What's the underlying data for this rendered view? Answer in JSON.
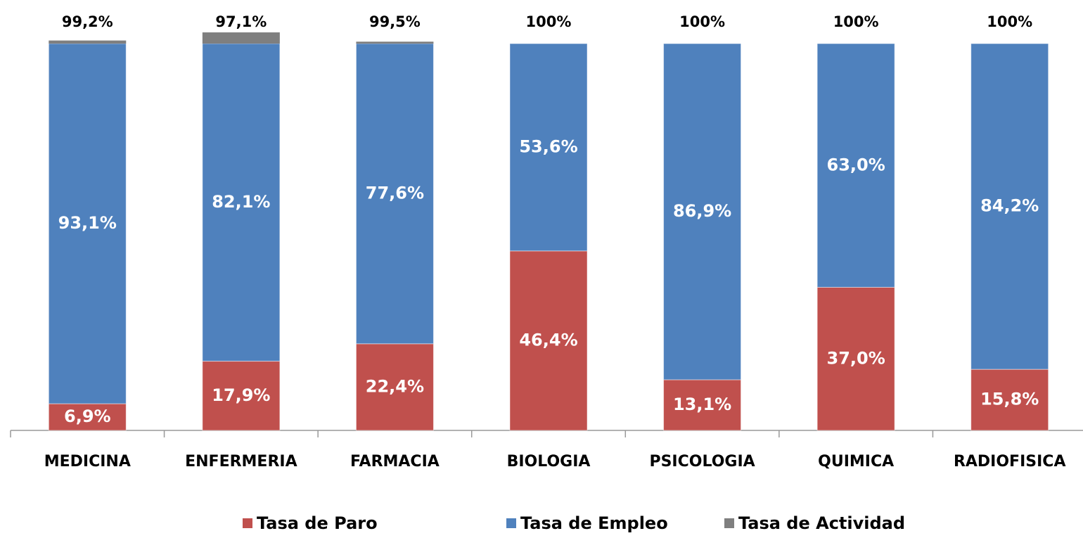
{
  "chart_data": {
    "type": "bar",
    "categories": [
      "MEDICINA",
      "ENFERMERIA",
      "FARMACIA",
      "BIOLOGIA",
      "PSICOLOGIA",
      "QUIMICA",
      "RADIOFISICA"
    ],
    "series": [
      {
        "name": "Tasa de Paro",
        "color": "#c0504d",
        "values": [
          6.9,
          17.9,
          22.4,
          46.4,
          13.1,
          37.0,
          15.8
        ],
        "value_labels": [
          "6,9%",
          "17,9%",
          "22,4%",
          "46,4%",
          "13,1%",
          "37,0%",
          "15,8%"
        ]
      },
      {
        "name": "Tasa de Empleo",
        "color": "#4f81bd",
        "values": [
          93.1,
          82.1,
          77.6,
          53.6,
          86.9,
          63.0,
          84.2
        ],
        "value_labels": [
          "93,1%",
          "82,1%",
          "77,6%",
          "53,6%",
          "86,9%",
          "63,0%",
          "84,2%"
        ]
      },
      {
        "name": "Tasa de Actividad",
        "color": "#7f7f7f",
        "values": [
          99.2,
          97.1,
          99.5,
          100,
          100,
          100,
          100
        ],
        "value_labels": [
          "99,2%",
          "97,1%",
          "99,5%",
          "100%",
          "100%",
          "100%",
          "100%"
        ]
      }
    ],
    "ylim": [
      0,
      100
    ],
    "legend": "bottom"
  }
}
